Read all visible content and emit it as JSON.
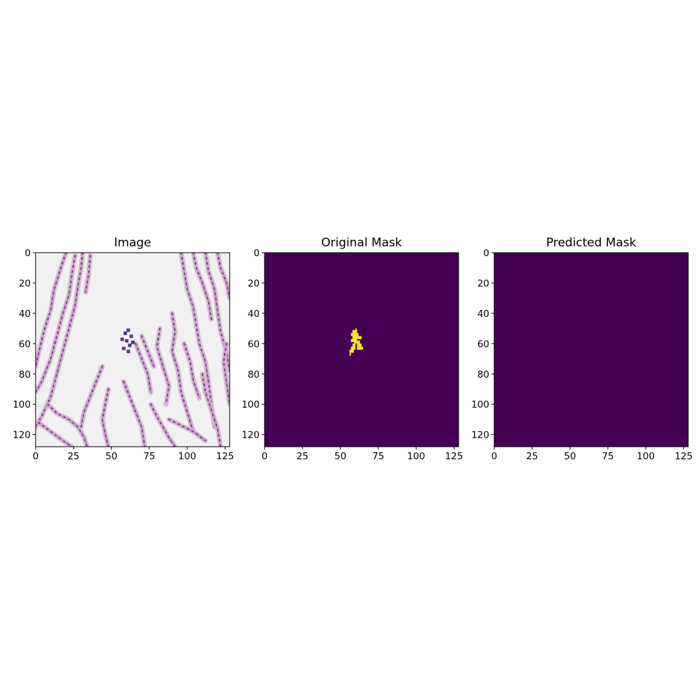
{
  "chart_data": [
    {
      "type": "heatmap",
      "title": "Image",
      "content": "H&E histology image tile",
      "xlim": [
        0,
        128
      ],
      "ylim": [
        128,
        0
      ],
      "xticks": [
        0,
        25,
        50,
        75,
        100,
        125
      ],
      "yticks": [
        0,
        20,
        40,
        60,
        80,
        100,
        120
      ],
      "colors": {
        "background": "#f1f1f1",
        "tissue_light": "#d7b3d2",
        "tissue_mid": "#b78ab8",
        "tissue_dark": "#5a3a78"
      }
    },
    {
      "type": "heatmap",
      "title": "Original Mask",
      "xlim": [
        0,
        128
      ],
      "ylim": [
        128,
        0
      ],
      "xticks": [
        0,
        25,
        50,
        75,
        100,
        125
      ],
      "yticks": [
        0,
        20,
        40,
        60,
        80,
        100,
        120
      ],
      "colormap": "viridis",
      "colors": {
        "background": "#440154",
        "foreground": "#fde725"
      },
      "foreground_region": {
        "x_range": [
          56,
          65
        ],
        "y_range": [
          50,
          68
        ]
      }
    },
    {
      "type": "heatmap",
      "title": "Predicted Mask",
      "xlim": [
        0,
        128
      ],
      "ylim": [
        128,
        0
      ],
      "xticks": [
        0,
        25,
        50,
        75,
        100,
        125
      ],
      "yticks": [
        0,
        20,
        40,
        60,
        80,
        100,
        120
      ],
      "colormap": "viridis",
      "colors": {
        "background": "#440154"
      }
    }
  ]
}
